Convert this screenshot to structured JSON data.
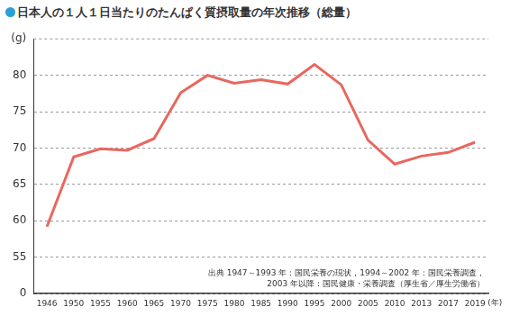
{
  "chart_data": {
    "type": "line",
    "title": "日本人の１人１日当たりのたんぱく質摂取量の年次推移（総量）",
    "y_label": "(g)",
    "x_label": "(年)",
    "categories": [
      "1946",
      "1950",
      "1955",
      "1960",
      "1965",
      "1970",
      "1975",
      "1980",
      "1985",
      "1990",
      "1995",
      "2000",
      "2005",
      "2010",
      "2013",
      "2017",
      "2019"
    ],
    "values": [
      59.2,
      68.8,
      69.9,
      69.7,
      71.3,
      77.6,
      80.0,
      78.9,
      79.4,
      78.8,
      81.5,
      78.7,
      71.1,
      67.8,
      68.9,
      69.4,
      70.8
    ],
    "color": "#e8675f",
    "marker": "none",
    "ylim": [
      0,
      85
    ],
    "yticks": [
      0,
      55,
      60,
      65,
      70,
      75,
      80
    ],
    "grid": true,
    "annotation": [
      "出典 1947～1993 年：国民栄養の現状，1994～2002 年：国民栄養調査，",
      "2003 年以降：国民健康・栄養調査（厚生省／厚生労働省）"
    ]
  }
}
